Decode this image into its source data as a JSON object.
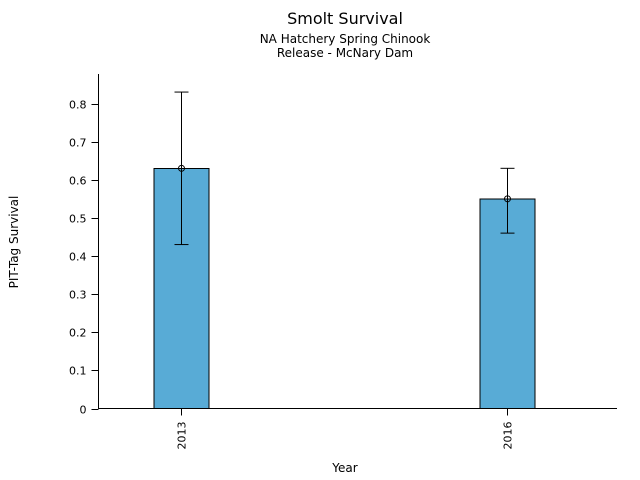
{
  "chart_data": {
    "type": "bar",
    "title": "Smolt Survival",
    "subtitle1": "NA Hatchery Spring Chinook",
    "subtitle2": "Release - McNary Dam",
    "xlabel": "Year",
    "ylabel": "PIT-Tag Survival",
    "categories": [
      "2013",
      "2016"
    ],
    "values": [
      0.63,
      0.55
    ],
    "error_low": [
      0.43,
      0.46
    ],
    "error_high": [
      0.83,
      0.63
    ],
    "ytick_values": [
      0,
      0.1,
      0.2,
      0.3,
      0.4,
      0.5,
      0.6,
      0.7,
      0.8
    ],
    "ytick_labels": [
      "0",
      "0.1",
      "0.2",
      "0.3",
      "0.4",
      "0.5",
      "0.6",
      "0.7",
      "0.8"
    ],
    "ylim": [
      0,
      0.88
    ],
    "grid": false,
    "legend": "none",
    "marker": "open-circle",
    "bar_color": "#58abd6",
    "bar_edge_color": "#000000",
    "error_bar_color": "#000000",
    "text_color": "#000000"
  }
}
